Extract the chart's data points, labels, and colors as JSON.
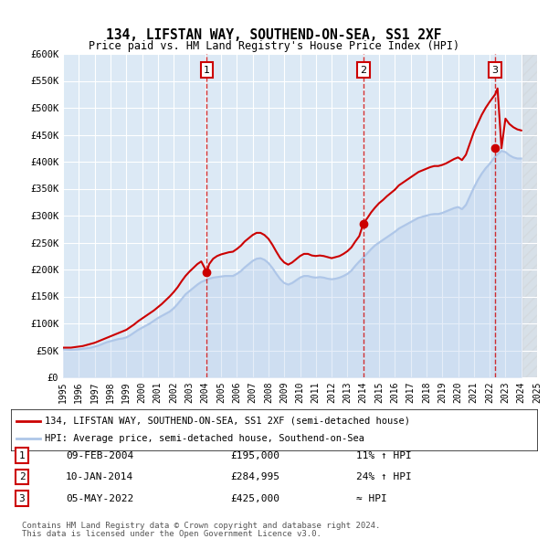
{
  "title": "134, LIFSTAN WAY, SOUTHEND-ON-SEA, SS1 2XF",
  "subtitle": "Price paid vs. HM Land Registry's House Price Index (HPI)",
  "ylabel_ticks": [
    "£0",
    "£50K",
    "£100K",
    "£150K",
    "£200K",
    "£250K",
    "£300K",
    "£350K",
    "£400K",
    "£450K",
    "£500K",
    "£550K",
    "£600K"
  ],
  "ylim": [
    0,
    600000
  ],
  "xlim": [
    1995,
    2025
  ],
  "background_color": "#ffffff",
  "plot_bg_color": "#dce9f5",
  "grid_color": "#ffffff",
  "hpi_color": "#aec6e8",
  "property_color": "#cc0000",
  "sale_marker_color": "#cc0000",
  "legend_property": "134, LIFSTAN WAY, SOUTHEND-ON-SEA, SS1 2XF (semi-detached house)",
  "legend_hpi": "HPI: Average price, semi-detached house, Southend-on-Sea",
  "sales": [
    {
      "num": 1,
      "date": "09-FEB-2004",
      "price": 195000,
      "hpi_rel": "11% ↑ HPI",
      "year": 2004.1
    },
    {
      "num": 2,
      "date": "10-JAN-2014",
      "price": 284995,
      "hpi_rel": "24% ↑ HPI",
      "year": 2014.0
    },
    {
      "num": 3,
      "date": "05-MAY-2022",
      "price": 425000,
      "hpi_rel": "≈ HPI",
      "year": 2022.35
    }
  ],
  "footnote1": "Contains HM Land Registry data © Crown copyright and database right 2024.",
  "footnote2": "This data is licensed under the Open Government Licence v3.0.",
  "hpi_data_x": [
    1995.0,
    1995.25,
    1995.5,
    1995.75,
    1996.0,
    1996.25,
    1996.5,
    1996.75,
    1997.0,
    1997.25,
    1997.5,
    1997.75,
    1998.0,
    1998.25,
    1998.5,
    1998.75,
    1999.0,
    1999.25,
    1999.5,
    1999.75,
    2000.0,
    2000.25,
    2000.5,
    2000.75,
    2001.0,
    2001.25,
    2001.5,
    2001.75,
    2002.0,
    2002.25,
    2002.5,
    2002.75,
    2003.0,
    2003.25,
    2003.5,
    2003.75,
    2004.0,
    2004.25,
    2004.5,
    2004.75,
    2005.0,
    2005.25,
    2005.5,
    2005.75,
    2006.0,
    2006.25,
    2006.5,
    2006.75,
    2007.0,
    2007.25,
    2007.5,
    2007.75,
    2008.0,
    2008.25,
    2008.5,
    2008.75,
    2009.0,
    2009.25,
    2009.5,
    2009.75,
    2010.0,
    2010.25,
    2010.5,
    2010.75,
    2011.0,
    2011.25,
    2011.5,
    2011.75,
    2012.0,
    2012.25,
    2012.5,
    2012.75,
    2013.0,
    2013.25,
    2013.5,
    2013.75,
    2014.0,
    2014.25,
    2014.5,
    2014.75,
    2015.0,
    2015.25,
    2015.5,
    2015.75,
    2016.0,
    2016.25,
    2016.5,
    2016.75,
    2017.0,
    2017.25,
    2017.5,
    2017.75,
    2018.0,
    2018.25,
    2018.5,
    2018.75,
    2019.0,
    2019.25,
    2019.5,
    2019.75,
    2020.0,
    2020.25,
    2020.5,
    2020.75,
    2021.0,
    2021.25,
    2021.5,
    2021.75,
    2022.0,
    2022.25,
    2022.5,
    2022.75,
    2023.0,
    2023.25,
    2023.5,
    2023.75,
    2024.0
  ],
  "hpi_data_y": [
    52000,
    51500,
    51000,
    51500,
    52000,
    53000,
    54000,
    55000,
    57000,
    59000,
    62000,
    65000,
    67000,
    69000,
    71000,
    72000,
    74000,
    78000,
    83000,
    88000,
    92000,
    96000,
    100000,
    105000,
    110000,
    114000,
    118000,
    122000,
    128000,
    136000,
    145000,
    154000,
    160000,
    166000,
    172000,
    177000,
    180000,
    183000,
    185000,
    186000,
    187000,
    188000,
    188000,
    188000,
    192000,
    197000,
    204000,
    210000,
    216000,
    220000,
    221000,
    218000,
    212000,
    203000,
    192000,
    182000,
    175000,
    172000,
    175000,
    180000,
    185000,
    188000,
    188000,
    186000,
    185000,
    186000,
    185000,
    183000,
    182000,
    183000,
    185000,
    188000,
    192000,
    198000,
    207000,
    215000,
    222000,
    230000,
    238000,
    245000,
    250000,
    255000,
    260000,
    265000,
    270000,
    276000,
    280000,
    284000,
    288000,
    292000,
    296000,
    298000,
    300000,
    302000,
    303000,
    303000,
    305000,
    308000,
    311000,
    314000,
    316000,
    312000,
    320000,
    336000,
    352000,
    366000,
    378000,
    388000,
    396000,
    406000,
    414000,
    420000,
    418000,
    412000,
    408000,
    406000,
    406000
  ],
  "property_data_x": [
    1995.0,
    1995.25,
    1995.5,
    1995.75,
    1996.0,
    1996.25,
    1996.5,
    1996.75,
    1997.0,
    1997.25,
    1997.5,
    1997.75,
    1998.0,
    1998.25,
    1998.5,
    1998.75,
    1999.0,
    1999.25,
    1999.5,
    1999.75,
    2000.0,
    2000.25,
    2000.5,
    2000.75,
    2001.0,
    2001.25,
    2001.5,
    2001.75,
    2002.0,
    2002.25,
    2002.5,
    2002.75,
    2003.0,
    2003.25,
    2003.5,
    2003.75,
    2004.1,
    2004.25,
    2004.5,
    2004.75,
    2005.0,
    2005.25,
    2005.5,
    2005.75,
    2006.0,
    2006.25,
    2006.5,
    2006.75,
    2007.0,
    2007.25,
    2007.5,
    2007.75,
    2008.0,
    2008.25,
    2008.5,
    2008.75,
    2009.0,
    2009.25,
    2009.5,
    2009.75,
    2010.0,
    2010.25,
    2010.5,
    2010.75,
    2011.0,
    2011.25,
    2011.5,
    2011.75,
    2012.0,
    2012.25,
    2012.5,
    2012.75,
    2013.0,
    2013.25,
    2013.5,
    2013.75,
    2014.0,
    2014.25,
    2014.5,
    2014.75,
    2015.0,
    2015.25,
    2015.5,
    2015.75,
    2016.0,
    2016.25,
    2016.5,
    2016.75,
    2017.0,
    2017.25,
    2017.5,
    2017.75,
    2018.0,
    2018.25,
    2018.5,
    2018.75,
    2019.0,
    2019.25,
    2019.5,
    2019.75,
    2020.0,
    2020.25,
    2020.5,
    2020.75,
    2021.0,
    2021.25,
    2021.5,
    2021.75,
    2022.0,
    2022.35,
    2022.5,
    2022.75,
    2023.0,
    2023.25,
    2023.5,
    2023.75,
    2024.0
  ],
  "property_data_y": [
    55000,
    55000,
    55000,
    56000,
    57000,
    58000,
    60000,
    62000,
    64000,
    67000,
    70000,
    73000,
    76000,
    79000,
    82000,
    85000,
    88000,
    93000,
    98000,
    104000,
    109000,
    114000,
    119000,
    124000,
    130000,
    136000,
    143000,
    150000,
    158000,
    167000,
    178000,
    188000,
    196000,
    203000,
    210000,
    215000,
    195000,
    210000,
    220000,
    225000,
    228000,
    230000,
    232000,
    233000,
    238000,
    244000,
    252000,
    258000,
    264000,
    268000,
    268000,
    264000,
    257000,
    246000,
    233000,
    221000,
    213000,
    209000,
    213000,
    219000,
    225000,
    229000,
    229000,
    226000,
    225000,
    226000,
    225000,
    223000,
    221000,
    223000,
    225000,
    229000,
    234000,
    241000,
    252000,
    262000,
    285000,
    295000,
    306000,
    315000,
    323000,
    329000,
    336000,
    342000,
    348000,
    356000,
    361000,
    366000,
    371000,
    376000,
    381000,
    384000,
    387000,
    390000,
    392000,
    392000,
    394000,
    397000,
    401000,
    405000,
    408000,
    403000,
    413000,
    434000,
    455000,
    471000,
    487000,
    500000,
    511000,
    525000,
    536000,
    425000,
    480000,
    470000,
    464000,
    460000,
    458000
  ]
}
